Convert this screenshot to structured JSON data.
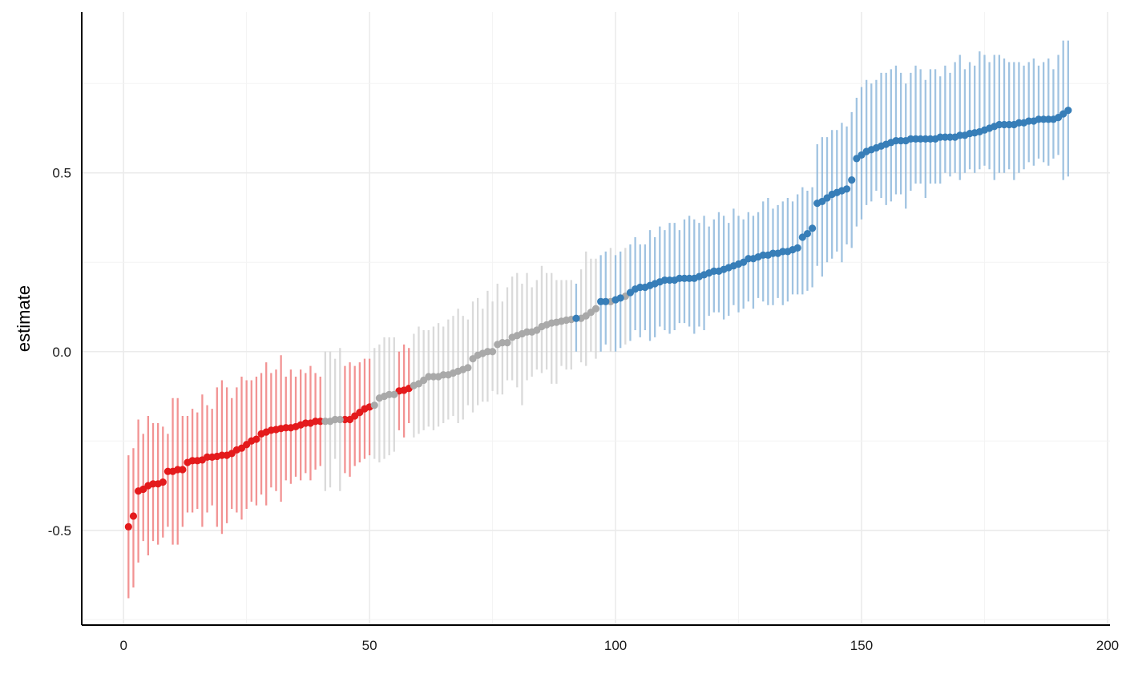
{
  "chart_data": {
    "type": "scatter",
    "title": "",
    "xlabel": "",
    "ylabel": "estimate",
    "xlim": [
      -8.5,
      200.5
    ],
    "ylim": [
      -0.765,
      0.95
    ],
    "x_ticks": [
      0,
      50,
      100,
      150,
      200
    ],
    "x_tick_labels": [
      "0",
      "50",
      "100",
      "150",
      "200"
    ],
    "y_ticks": [
      -0.5,
      0.0,
      0.5
    ],
    "y_tick_labels": [
      "-0.5",
      "0.0",
      "0.5"
    ],
    "grid": true,
    "legend": "none",
    "colors": {
      "negative": "#e41a1c",
      "neutral": "#a9a9a9",
      "positive": "#377eb8"
    },
    "error_bar_colors": {
      "negative": "#f08080",
      "neutral": "#d3d3d3",
      "positive": "#8fb8dc"
    },
    "series": [
      {
        "group": "negative",
        "x": [
          1,
          2,
          3,
          4,
          5,
          6,
          7,
          8,
          9,
          10,
          11,
          12,
          13,
          14,
          15,
          16,
          17,
          18,
          19,
          20,
          21,
          22,
          23,
          24,
          25,
          26,
          27,
          28,
          29,
          30,
          31,
          32,
          33,
          34,
          35,
          36,
          37,
          38,
          39,
          40,
          45,
          46,
          47,
          48,
          49,
          50,
          56,
          57,
          58
        ],
        "y": [
          -0.49,
          -0.46,
          -0.39,
          -0.385,
          -0.375,
          -0.37,
          -0.37,
          -0.365,
          -0.335,
          -0.335,
          -0.33,
          -0.33,
          -0.31,
          -0.305,
          -0.305,
          -0.303,
          -0.295,
          -0.295,
          -0.293,
          -0.29,
          -0.29,
          -0.285,
          -0.275,
          -0.27,
          -0.26,
          -0.25,
          -0.245,
          -0.23,
          -0.225,
          -0.22,
          -0.218,
          -0.215,
          -0.213,
          -0.213,
          -0.21,
          -0.205,
          -0.2,
          -0.2,
          -0.195,
          -0.195,
          -0.19,
          -0.19,
          -0.18,
          -0.17,
          -0.16,
          -0.155,
          -0.11,
          -0.108,
          -0.103
        ],
        "lower": [
          -0.69,
          -0.66,
          -0.59,
          -0.53,
          -0.57,
          -0.53,
          -0.54,
          -0.52,
          -0.49,
          -0.54,
          -0.54,
          -0.49,
          -0.45,
          -0.45,
          -0.44,
          -0.49,
          -0.45,
          -0.43,
          -0.49,
          -0.51,
          -0.48,
          -0.44,
          -0.45,
          -0.47,
          -0.44,
          -0.42,
          -0.43,
          -0.4,
          -0.43,
          -0.38,
          -0.39,
          -0.42,
          -0.36,
          -0.37,
          -0.35,
          -0.36,
          -0.34,
          -0.36,
          -0.33,
          -0.32,
          -0.34,
          -0.35,
          -0.32,
          -0.31,
          -0.3,
          -0.29,
          -0.22,
          -0.24,
          -0.2
        ],
        "upper": [
          -0.29,
          -0.27,
          -0.19,
          -0.23,
          -0.18,
          -0.2,
          -0.2,
          -0.21,
          -0.23,
          -0.13,
          -0.13,
          -0.18,
          -0.18,
          -0.16,
          -0.17,
          -0.12,
          -0.15,
          -0.16,
          -0.1,
          -0.08,
          -0.1,
          -0.13,
          -0.1,
          -0.07,
          -0.08,
          -0.08,
          -0.07,
          -0.06,
          -0.03,
          -0.06,
          -0.05,
          -0.01,
          -0.07,
          -0.05,
          -0.07,
          -0.05,
          -0.06,
          -0.04,
          -0.06,
          -0.07,
          -0.04,
          -0.03,
          -0.04,
          -0.03,
          -0.02,
          -0.02,
          0.0,
          0.02,
          0.01
        ]
      },
      {
        "group": "neutral",
        "x": [
          41,
          42,
          43,
          44,
          51,
          52,
          53,
          54,
          55,
          59,
          60,
          61,
          62,
          63,
          64,
          65,
          66,
          67,
          68,
          69,
          70,
          71,
          72,
          73,
          74,
          75,
          76,
          77,
          78,
          79,
          80,
          81,
          82,
          83,
          84,
          85,
          86,
          87,
          88,
          89,
          90,
          91,
          93,
          94,
          95,
          96,
          99,
          102
        ],
        "y": [
          -0.195,
          -0.195,
          -0.19,
          -0.19,
          -0.15,
          -0.13,
          -0.125,
          -0.12,
          -0.12,
          -0.095,
          -0.09,
          -0.08,
          -0.07,
          -0.07,
          -0.07,
          -0.065,
          -0.065,
          -0.06,
          -0.055,
          -0.05,
          -0.045,
          -0.02,
          -0.01,
          -0.005,
          0.0,
          0.0,
          0.02,
          0.025,
          0.025,
          0.04,
          0.045,
          0.05,
          0.055,
          0.055,
          0.06,
          0.07,
          0.075,
          0.08,
          0.082,
          0.085,
          0.088,
          0.09,
          0.093,
          0.1,
          0.11,
          0.12,
          0.14,
          0.155
        ],
        "lower": [
          -0.39,
          -0.38,
          -0.3,
          -0.39,
          -0.3,
          -0.31,
          -0.3,
          -0.29,
          -0.28,
          -0.24,
          -0.23,
          -0.22,
          -0.21,
          -0.22,
          -0.21,
          -0.2,
          -0.19,
          -0.18,
          -0.2,
          -0.19,
          -0.15,
          -0.17,
          -0.15,
          -0.14,
          -0.14,
          -0.11,
          -0.12,
          -0.12,
          -0.08,
          -0.08,
          -0.1,
          -0.15,
          -0.08,
          -0.07,
          -0.05,
          -0.06,
          -0.05,
          -0.09,
          -0.09,
          -0.04,
          -0.05,
          -0.05,
          -0.03,
          -0.04,
          0.0,
          -0.02,
          0.0,
          0.02
        ],
        "upper": [
          0.0,
          0.0,
          -0.02,
          0.01,
          0.01,
          0.02,
          0.04,
          0.04,
          0.04,
          0.05,
          0.07,
          0.06,
          0.06,
          0.07,
          0.08,
          0.07,
          0.09,
          0.1,
          0.12,
          0.1,
          0.09,
          0.14,
          0.15,
          0.12,
          0.17,
          0.14,
          0.19,
          0.14,
          0.18,
          0.21,
          0.22,
          0.19,
          0.22,
          0.18,
          0.2,
          0.24,
          0.22,
          0.22,
          0.2,
          0.2,
          0.2,
          0.2,
          0.23,
          0.28,
          0.26,
          0.26,
          0.29,
          0.29
        ]
      },
      {
        "group": "positive",
        "x": [
          92,
          97,
          98,
          100,
          101,
          103,
          104,
          105,
          106,
          107,
          108,
          109,
          110,
          111,
          112,
          113,
          114,
          115,
          116,
          117,
          118,
          119,
          120,
          121,
          122,
          123,
          124,
          125,
          126,
          127,
          128,
          129,
          130,
          131,
          132,
          133,
          134,
          135,
          136,
          137,
          138,
          139,
          140,
          141,
          142,
          143,
          144,
          145,
          146,
          147,
          148,
          149,
          150,
          151,
          152,
          153,
          154,
          155,
          156,
          157,
          158,
          159,
          160,
          161,
          162,
          163,
          164,
          165,
          166,
          167,
          168,
          169,
          170,
          171,
          172,
          173,
          174,
          175,
          176,
          177,
          178,
          179,
          180,
          181,
          182,
          183,
          184,
          185,
          186,
          187,
          188,
          189,
          190,
          191,
          192
        ],
        "y": [
          0.093,
          0.14,
          0.14,
          0.145,
          0.15,
          0.165,
          0.175,
          0.18,
          0.18,
          0.185,
          0.19,
          0.195,
          0.2,
          0.2,
          0.2,
          0.205,
          0.205,
          0.205,
          0.205,
          0.21,
          0.215,
          0.22,
          0.225,
          0.225,
          0.23,
          0.235,
          0.24,
          0.245,
          0.25,
          0.26,
          0.26,
          0.265,
          0.27,
          0.27,
          0.275,
          0.275,
          0.28,
          0.28,
          0.285,
          0.29,
          0.32,
          0.33,
          0.345,
          0.415,
          0.42,
          0.43,
          0.44,
          0.445,
          0.45,
          0.455,
          0.48,
          0.54,
          0.55,
          0.56,
          0.565,
          0.57,
          0.575,
          0.58,
          0.585,
          0.59,
          0.59,
          0.59,
          0.595,
          0.595,
          0.595,
          0.595,
          0.595,
          0.595,
          0.6,
          0.6,
          0.6,
          0.6,
          0.605,
          0.605,
          0.61,
          0.612,
          0.615,
          0.62,
          0.625,
          0.63,
          0.635,
          0.635,
          0.635,
          0.635,
          0.64,
          0.64,
          0.645,
          0.645,
          0.65,
          0.65,
          0.65,
          0.65,
          0.655,
          0.665,
          0.675
        ],
        "lower": [
          0.0,
          0.0,
          0.02,
          0.0,
          0.01,
          0.03,
          0.06,
          0.04,
          0.06,
          0.03,
          0.04,
          0.07,
          0.06,
          0.05,
          0.06,
          0.08,
          0.08,
          0.07,
          0.05,
          0.07,
          0.06,
          0.1,
          0.11,
          0.11,
          0.09,
          0.1,
          0.13,
          0.11,
          0.12,
          0.14,
          0.12,
          0.15,
          0.14,
          0.13,
          0.13,
          0.15,
          0.13,
          0.14,
          0.16,
          0.16,
          0.16,
          0.17,
          0.18,
          0.24,
          0.21,
          0.25,
          0.26,
          0.28,
          0.25,
          0.3,
          0.29,
          0.35,
          0.37,
          0.41,
          0.42,
          0.45,
          0.43,
          0.41,
          0.42,
          0.44,
          0.44,
          0.4,
          0.45,
          0.47,
          0.47,
          0.43,
          0.47,
          0.47,
          0.47,
          0.5,
          0.49,
          0.5,
          0.48,
          0.5,
          0.51,
          0.5,
          0.51,
          0.52,
          0.51,
          0.48,
          0.5,
          0.5,
          0.51,
          0.48,
          0.5,
          0.51,
          0.53,
          0.52,
          0.54,
          0.53,
          0.52,
          0.54,
          0.55,
          0.48,
          0.49
        ],
        "upper": [
          0.19,
          0.27,
          0.28,
          0.27,
          0.28,
          0.3,
          0.32,
          0.3,
          0.3,
          0.34,
          0.32,
          0.35,
          0.34,
          0.36,
          0.36,
          0.34,
          0.37,
          0.38,
          0.37,
          0.36,
          0.38,
          0.35,
          0.37,
          0.39,
          0.38,
          0.36,
          0.4,
          0.38,
          0.37,
          0.39,
          0.38,
          0.39,
          0.42,
          0.43,
          0.4,
          0.41,
          0.42,
          0.43,
          0.42,
          0.44,
          0.46,
          0.45,
          0.46,
          0.58,
          0.6,
          0.6,
          0.62,
          0.62,
          0.64,
          0.63,
          0.67,
          0.71,
          0.74,
          0.76,
          0.75,
          0.76,
          0.78,
          0.78,
          0.79,
          0.8,
          0.78,
          0.75,
          0.78,
          0.8,
          0.79,
          0.76,
          0.79,
          0.79,
          0.77,
          0.8,
          0.78,
          0.81,
          0.83,
          0.79,
          0.81,
          0.8,
          0.84,
          0.83,
          0.81,
          0.83,
          0.83,
          0.82,
          0.81,
          0.81,
          0.81,
          0.8,
          0.81,
          0.82,
          0.8,
          0.81,
          0.82,
          0.79,
          0.83,
          0.87,
          0.87
        ]
      }
    ]
  }
}
